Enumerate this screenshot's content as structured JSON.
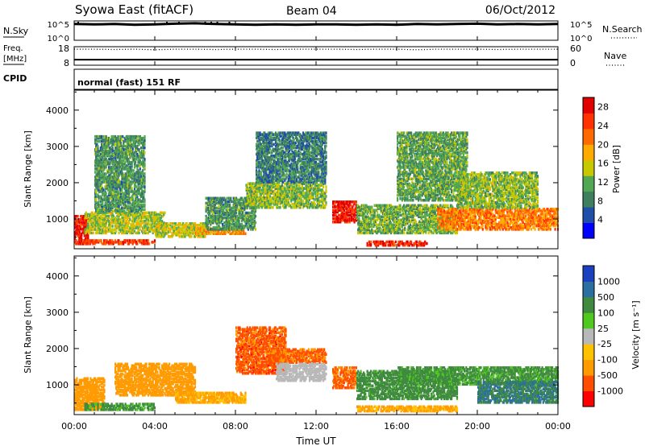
{
  "header": {
    "station": "Syowa East (fitACF)",
    "beam": "Beam 04",
    "date": "06/Oct/2012",
    "cpid_mode": "normal (fast) 151 RF"
  },
  "panel_labels": {
    "nsky": "N.Sky",
    "freq_line1": "Freq.",
    "freq_line2": "[MHz]",
    "cpid": "CPID",
    "nsearch": "N.Search",
    "nave": "Nave"
  },
  "colors": {
    "power_scale": [
      "#0000ff",
      "#1f4fa8",
      "#3f7f5f",
      "#52a852",
      "#c8c800",
      "#ffaa00",
      "#ff6a00",
      "#ff3300",
      "#e00000"
    ],
    "velocity_scale": [
      "#ff0000",
      "#ff4e00",
      "#ff9a00",
      "#ffc200",
      "#b8b8b8",
      "#50c820",
      "#3f8a3f",
      "#2a6fa0",
      "#1a3fbf"
    ]
  },
  "chart_data": [
    {
      "type": "line",
      "name": "noise-sky-search",
      "ylabel_left": "N.Sky",
      "ylabel_right": "N.Search",
      "left_ticks": [
        "10^5",
        "10^0"
      ],
      "right_ticks": [
        "10^5",
        "10^0"
      ],
      "ylim": [
        0,
        5
      ],
      "x_hours": [
        0,
        1,
        2,
        3,
        4,
        5,
        6,
        7,
        8,
        9,
        10,
        11,
        12,
        13,
        14,
        15,
        16,
        17,
        18,
        19,
        20,
        21,
        22,
        23,
        24
      ],
      "values": [
        4.2,
        4.1,
        4.2,
        4.0,
        4.1,
        4.3,
        4.4,
        4.2,
        4.1,
        4.0,
        4.1,
        4.0,
        4.1,
        4.1,
        4.0,
        4.1,
        4.0,
        4.2,
        4.1,
        4.2,
        4.3,
        4.1,
        4.2,
        4.1,
        4.2
      ],
      "spikes_hours": [
        0.2,
        4.6,
        5.2,
        6.5,
        6.8,
        7.1,
        7.7
      ]
    },
    {
      "type": "line",
      "name": "frequency-nave",
      "ylabel_left": "Freq. [MHz]",
      "ylabel_right": "Nave",
      "left_ticks": [
        "18",
        "8"
      ],
      "right_ticks": [
        "60",
        "0"
      ],
      "freq_mhz": 11,
      "nave_series": [
        52,
        52,
        51,
        52,
        50,
        52,
        52,
        51,
        52,
        52,
        51,
        52,
        52,
        52,
        51,
        52,
        52,
        50,
        52,
        52,
        52,
        51,
        52,
        52,
        52
      ]
    },
    {
      "type": "heatmap",
      "name": "power",
      "title": "",
      "xlabel": "",
      "ylabel": "Slant Range [km]",
      "x_ticks": [
        "00:00",
        "04:00",
        "08:00",
        "12:00",
        "16:00",
        "20:00",
        "00:00"
      ],
      "xlim_hours": [
        0,
        24
      ],
      "y_ticks": [
        1000,
        2000,
        3000,
        4000
      ],
      "ylim_km": [
        180,
        4550
      ],
      "colorbar_label": "Power [dB]",
      "colorbar_ticks": [
        4,
        8,
        12,
        16,
        20,
        24,
        28
      ],
      "clim": [
        0,
        30
      ],
      "regions": [
        {
          "t0": 0.0,
          "t1": 0.7,
          "r0": 300,
          "r1": 1100,
          "value": 27
        },
        {
          "t0": 0.3,
          "t1": 4.0,
          "r0": 300,
          "r1": 430,
          "value": 24
        },
        {
          "t0": 0.5,
          "t1": 4.5,
          "r0": 600,
          "r1": 1200,
          "value": 14
        },
        {
          "t0": 1.0,
          "t1": 3.5,
          "r0": 1200,
          "r1": 3300,
          "value": 10
        },
        {
          "t0": 4.0,
          "t1": 6.5,
          "r0": 500,
          "r1": 900,
          "value": 15
        },
        {
          "t0": 6.0,
          "t1": 8.5,
          "r0": 580,
          "r1": 760,
          "value": 19
        },
        {
          "t0": 6.5,
          "t1": 9.0,
          "r0": 700,
          "r1": 1600,
          "value": 10
        },
        {
          "t0": 8.5,
          "t1": 12.5,
          "r0": 1300,
          "r1": 2000,
          "value": 13
        },
        {
          "t0": 9.0,
          "t1": 12.5,
          "r0": 2000,
          "r1": 3400,
          "value": 8
        },
        {
          "t0": 12.8,
          "t1": 14.0,
          "r0": 900,
          "r1": 1500,
          "value": 27
        },
        {
          "t0": 14.5,
          "t1": 17.5,
          "r0": 260,
          "r1": 400,
          "value": 26
        },
        {
          "t0": 14.0,
          "t1": 19.0,
          "r0": 600,
          "r1": 1400,
          "value": 12
        },
        {
          "t0": 16.0,
          "t1": 19.5,
          "r0": 1500,
          "r1": 3400,
          "value": 11
        },
        {
          "t0": 18.0,
          "t1": 24.0,
          "r0": 700,
          "r1": 1300,
          "value": 21
        },
        {
          "t0": 19.0,
          "t1": 23.0,
          "r0": 1300,
          "r1": 2300,
          "value": 13
        }
      ]
    },
    {
      "type": "heatmap",
      "name": "velocity",
      "title": "",
      "xlabel": "Time UT",
      "ylabel": "Slant Range [km]",
      "x_ticks": [
        "00:00",
        "04:00",
        "08:00",
        "12:00",
        "16:00",
        "20:00",
        "00:00"
      ],
      "xlim_hours": [
        0,
        24
      ],
      "y_ticks": [
        1000,
        2000,
        3000,
        4000
      ],
      "ylim_km": [
        180,
        4550
      ],
      "colorbar_label": "Velocity [m s⁻¹]",
      "colorbar_ticks": [
        "1000",
        "500",
        "100",
        "25",
        "-25",
        "-100",
        "-500",
        "-1000"
      ],
      "regions": [
        {
          "t0": 0.0,
          "t1": 1.5,
          "r0": 300,
          "r1": 1200,
          "value": -300
        },
        {
          "t0": 0.5,
          "t1": 4.0,
          "r0": 300,
          "r1": 500,
          "value": 150
        },
        {
          "t0": 2.0,
          "t1": 6.0,
          "r0": 700,
          "r1": 1600,
          "value": -300
        },
        {
          "t0": 5.0,
          "t1": 8.5,
          "r0": 500,
          "r1": 800,
          "value": -120
        },
        {
          "t0": 8.0,
          "t1": 10.5,
          "r0": 1300,
          "r1": 2600,
          "value": -700
        },
        {
          "t0": 9.5,
          "t1": 12.5,
          "r0": 1600,
          "r1": 2000,
          "value": -600
        },
        {
          "t0": 10.0,
          "t1": 12.5,
          "r0": 1100,
          "r1": 1600,
          "value": 0
        },
        {
          "t0": 12.8,
          "t1": 14.0,
          "r0": 900,
          "r1": 1500,
          "value": -600
        },
        {
          "t0": 14.0,
          "t1": 19.0,
          "r0": 260,
          "r1": 420,
          "value": -120
        },
        {
          "t0": 14.0,
          "t1": 19.0,
          "r0": 600,
          "r1": 1400,
          "value": 200
        },
        {
          "t0": 16.0,
          "t1": 24.0,
          "r0": 1000,
          "r1": 1500,
          "value": 150
        },
        {
          "t0": 20.0,
          "t1": 24.0,
          "r0": 500,
          "r1": 1100,
          "value": 500
        }
      ]
    }
  ]
}
